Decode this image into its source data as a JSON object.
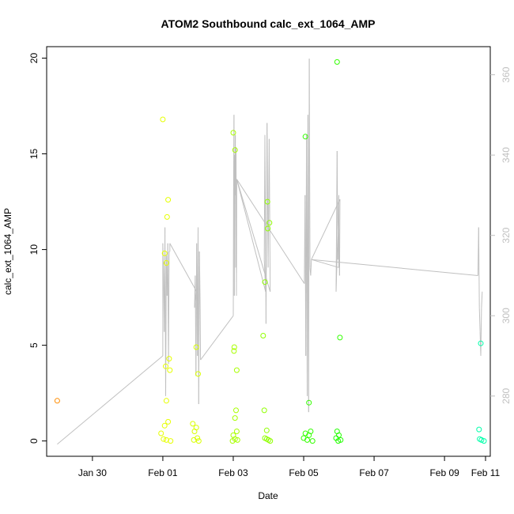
{
  "chart_data": {
    "type": "scatter",
    "title": "ATOM2 Southbound calc_ext_1064_AMP",
    "xlabel": "Date",
    "ylabel": "calc_ext_1064_AMP",
    "x_axis": {
      "range_days": [
        28.7,
        41.3
      ],
      "ticks": [
        {
          "pos": 30,
          "label": "Jan 30"
        },
        {
          "pos": 32,
          "label": "Feb 01"
        },
        {
          "pos": 34,
          "label": "Feb 03"
        },
        {
          "pos": 36,
          "label": "Feb 05"
        },
        {
          "pos": 38,
          "label": "Feb 07"
        },
        {
          "pos": 40,
          "label": "Feb 09"
        },
        {
          "pos": 42,
          "label": "Feb 11"
        }
      ]
    },
    "y_left": {
      "range": [
        -0.8,
        20.6
      ],
      "ticks": [
        {
          "pos": 0,
          "label": "0"
        },
        {
          "pos": 5,
          "label": "5"
        },
        {
          "pos": 10,
          "label": "10"
        },
        {
          "pos": 15,
          "label": "15"
        },
        {
          "pos": 20,
          "label": "20"
        }
      ]
    },
    "y_right": {
      "range": [
        265,
        367
      ],
      "color": "#c0c0c0",
      "ticks": [
        {
          "pos": 280,
          "label": "280"
        },
        {
          "pos": 300,
          "label": "300"
        },
        {
          "pos": 320,
          "label": "320"
        },
        {
          "pos": 340,
          "label": "340"
        },
        {
          "pos": 360,
          "label": "360"
        }
      ]
    },
    "points": [
      {
        "x": 29.0,
        "y": 2.1,
        "color": "#ff8c00"
      },
      {
        "x": 32.0,
        "y": 16.8,
        "color": "#e6ff00"
      },
      {
        "x": 32.15,
        "y": 12.6,
        "color": "#e6ff00"
      },
      {
        "x": 32.12,
        "y": 11.7,
        "color": "#e6ff00"
      },
      {
        "x": 32.05,
        "y": 9.8,
        "color": "#e6ff00"
      },
      {
        "x": 32.1,
        "y": 9.3,
        "color": "#e6ff00"
      },
      {
        "x": 32.18,
        "y": 4.3,
        "color": "#e6ff00"
      },
      {
        "x": 32.08,
        "y": 3.9,
        "color": "#e6ff00"
      },
      {
        "x": 32.2,
        "y": 3.7,
        "color": "#e6ff00"
      },
      {
        "x": 32.1,
        "y": 2.1,
        "color": "#e6ff00"
      },
      {
        "x": 32.15,
        "y": 1.0,
        "color": "#e6ff00"
      },
      {
        "x": 32.05,
        "y": 0.8,
        "color": "#e6ff00"
      },
      {
        "x": 31.95,
        "y": 0.4,
        "color": "#e6ff00"
      },
      {
        "x": 32.02,
        "y": 0.1,
        "color": "#e6ff00"
      },
      {
        "x": 32.1,
        "y": 0.05,
        "color": "#e6ff00"
      },
      {
        "x": 32.22,
        "y": 0.0,
        "color": "#e6ff00"
      },
      {
        "x": 32.95,
        "y": 4.9,
        "color": "#d9ff00"
      },
      {
        "x": 33.0,
        "y": 3.5,
        "color": "#d9ff00"
      },
      {
        "x": 32.85,
        "y": 0.9,
        "color": "#d9ff00"
      },
      {
        "x": 32.95,
        "y": 0.7,
        "color": "#d9ff00"
      },
      {
        "x": 32.9,
        "y": 0.5,
        "color": "#d9ff00"
      },
      {
        "x": 32.98,
        "y": 0.15,
        "color": "#d9ff00"
      },
      {
        "x": 32.88,
        "y": 0.05,
        "color": "#d9ff00"
      },
      {
        "x": 33.02,
        "y": 0.0,
        "color": "#d9ff00"
      },
      {
        "x": 34.0,
        "y": 16.1,
        "color": "#a8ff00"
      },
      {
        "x": 34.05,
        "y": 15.2,
        "color": "#a8ff00"
      },
      {
        "x": 34.03,
        "y": 4.9,
        "color": "#a8ff00"
      },
      {
        "x": 34.02,
        "y": 4.7,
        "color": "#a8ff00"
      },
      {
        "x": 34.1,
        "y": 3.7,
        "color": "#a8ff00"
      },
      {
        "x": 34.08,
        "y": 1.6,
        "color": "#a8ff00"
      },
      {
        "x": 34.05,
        "y": 1.2,
        "color": "#a8ff00"
      },
      {
        "x": 34.1,
        "y": 0.5,
        "color": "#a8ff00"
      },
      {
        "x": 34.0,
        "y": 0.3,
        "color": "#a8ff00"
      },
      {
        "x": 34.05,
        "y": 0.1,
        "color": "#a8ff00"
      },
      {
        "x": 34.12,
        "y": 0.05,
        "color": "#a8ff00"
      },
      {
        "x": 33.98,
        "y": 0.0,
        "color": "#a8ff00"
      },
      {
        "x": 34.97,
        "y": 12.5,
        "color": "#90ff00"
      },
      {
        "x": 35.03,
        "y": 11.4,
        "color": "#90ff00"
      },
      {
        "x": 34.98,
        "y": 11.1,
        "color": "#90ff00"
      },
      {
        "x": 34.9,
        "y": 8.3,
        "color": "#90ff00"
      },
      {
        "x": 34.85,
        "y": 5.5,
        "color": "#90ff00"
      },
      {
        "x": 34.88,
        "y": 1.6,
        "color": "#90ff00"
      },
      {
        "x": 34.95,
        "y": 0.55,
        "color": "#90ff00"
      },
      {
        "x": 34.9,
        "y": 0.15,
        "color": "#90ff00"
      },
      {
        "x": 34.95,
        "y": 0.1,
        "color": "#90ff00"
      },
      {
        "x": 35.0,
        "y": 0.05,
        "color": "#90ff00"
      },
      {
        "x": 35.05,
        "y": 0.0,
        "color": "#90ff00"
      },
      {
        "x": 36.05,
        "y": 15.9,
        "color": "#33ff00"
      },
      {
        "x": 36.95,
        "y": 19.8,
        "color": "#33ff00"
      },
      {
        "x": 37.03,
        "y": 5.4,
        "color": "#33ff00"
      },
      {
        "x": 36.15,
        "y": 2.0,
        "color": "#33ff00"
      },
      {
        "x": 36.05,
        "y": 0.4,
        "color": "#33ff00"
      },
      {
        "x": 36.15,
        "y": 0.3,
        "color": "#33ff00"
      },
      {
        "x": 36.2,
        "y": 0.5,
        "color": "#33ff00"
      },
      {
        "x": 36.0,
        "y": 0.15,
        "color": "#33ff00"
      },
      {
        "x": 36.1,
        "y": 0.05,
        "color": "#33ff00"
      },
      {
        "x": 36.25,
        "y": 0.0,
        "color": "#33ff00"
      },
      {
        "x": 36.95,
        "y": 0.5,
        "color": "#22ff00"
      },
      {
        "x": 37.0,
        "y": 0.3,
        "color": "#22ff00"
      },
      {
        "x": 36.92,
        "y": 0.15,
        "color": "#22ff00"
      },
      {
        "x": 37.05,
        "y": 0.05,
        "color": "#22ff00"
      },
      {
        "x": 36.98,
        "y": 0.0,
        "color": "#22ff00"
      },
      {
        "x": 41.03,
        "y": 5.1,
        "color": "#00ffaa"
      },
      {
        "x": 40.98,
        "y": 0.6,
        "color": "#00ffaa"
      },
      {
        "x": 41.0,
        "y": 0.1,
        "color": "#00ffaa"
      },
      {
        "x": 41.05,
        "y": 0.05,
        "color": "#00ffaa"
      },
      {
        "x": 41.12,
        "y": 0.0,
        "color": "#00ffaa"
      }
    ],
    "line_series": {
      "axis": "right",
      "color": "#c0c0c0",
      "x": [
        29.0,
        32.0,
        32.0,
        32.02,
        32.04,
        32.06,
        32.08,
        32.1,
        32.12,
        32.14,
        32.16,
        32.18,
        32.2,
        32.2,
        32.96,
        32.9,
        32.92,
        32.94,
        32.96,
        32.98,
        33.0,
        33.02,
        33.04,
        33.06,
        33.07,
        34.0,
        34.01,
        34.02,
        34.03,
        34.04,
        34.05,
        34.06,
        34.07,
        34.08,
        34.09,
        34.1,
        34.92,
        34.88,
        34.9,
        34.93,
        34.96,
        34.99,
        35.02,
        35.05,
        34.1,
        36.02,
        36.04,
        36.06,
        36.08,
        36.1,
        36.12,
        36.14,
        36.16,
        36.18,
        36.2,
        36.22,
        37.0,
        37.0,
        36.92,
        36.95,
        36.97,
        36.98,
        37.0,
        37.02,
        37.03,
        36.22,
        40.95,
        40.97,
        40.99,
        41.01,
        41.03,
        41.05,
        41.07
      ],
      "y": [
        268,
        290,
        318,
        310,
        296,
        322,
        280,
        315,
        305,
        318,
        288,
        316,
        316,
        318,
        306,
        302,
        310,
        285,
        318,
        290,
        322,
        278,
        316,
        302,
        289,
        300,
        332,
        350,
        305,
        340,
        330,
        345,
        312,
        342,
        305,
        334,
        306,
        314,
        345,
        298,
        348,
        312,
        344,
        306,
        334,
        308,
        330,
        290,
        345,
        280,
        350,
        276,
        364,
        312,
        310,
        314,
        312,
        330,
        306,
        341,
        314,
        318,
        322,
        310,
        329,
        314,
        310,
        322,
        302,
        296,
        290,
        302,
        306
      ]
    }
  }
}
